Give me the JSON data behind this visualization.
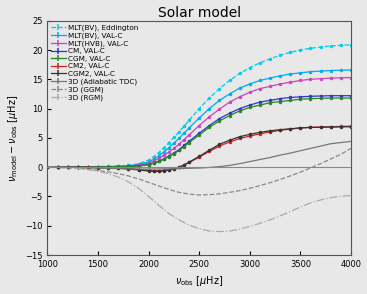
{
  "title": "Solar model",
  "xlabel": "$\\nu_{\\rm obs}$ [$\\mu$Hz]",
  "ylabel": "$\\nu_{\\rm model} - \\nu_{\\rm obs}$ [$\\mu$Hz]",
  "xlim": [
    1000,
    4000
  ],
  "ylim": [
    -15,
    25
  ],
  "yticks": [
    -15,
    -10,
    -5,
    0,
    5,
    10,
    15,
    20,
    25
  ],
  "xticks": [
    1000,
    1500,
    2000,
    2500,
    3000,
    3500,
    4000
  ],
  "bg_color": "#e8e8e8",
  "series": [
    {
      "label": "MLT(BV), Eddington",
      "color": "#00ccee",
      "linestyle": "--",
      "linewidth": 0.9,
      "marker": "o",
      "markersize": 2.0,
      "x": [
        1000,
        1100,
        1200,
        1300,
        1400,
        1500,
        1600,
        1700,
        1800,
        1900,
        2000,
        2050,
        2100,
        2150,
        2200,
        2250,
        2300,
        2350,
        2400,
        2500,
        2600,
        2700,
        2800,
        2900,
        3000,
        3100,
        3200,
        3300,
        3400,
        3500,
        3600,
        3700,
        3800,
        3900,
        4000
      ],
      "y": [
        0.0,
        0.02,
        0.04,
        0.06,
        0.08,
        0.1,
        0.12,
        0.18,
        0.3,
        0.6,
        1.2,
        1.8,
        2.5,
        3.3,
        4.2,
        5.1,
        6.0,
        7.0,
        8.0,
        10.0,
        11.8,
        13.4,
        14.8,
        16.0,
        17.0,
        17.8,
        18.5,
        19.1,
        19.6,
        20.0,
        20.3,
        20.5,
        20.7,
        20.8,
        20.9
      ]
    },
    {
      "label": "MLT(BV), VAL-C",
      "color": "#00aaee",
      "linestyle": "-",
      "linewidth": 0.9,
      "marker": "o",
      "markersize": 2.0,
      "x": [
        1000,
        1100,
        1200,
        1300,
        1400,
        1500,
        1600,
        1700,
        1800,
        1900,
        2000,
        2050,
        2100,
        2150,
        2200,
        2250,
        2300,
        2350,
        2400,
        2500,
        2600,
        2700,
        2800,
        2900,
        3000,
        3100,
        3200,
        3300,
        3400,
        3500,
        3600,
        3700,
        3800,
        3900,
        4000
      ],
      "y": [
        0.0,
        0.02,
        0.03,
        0.05,
        0.07,
        0.09,
        0.1,
        0.14,
        0.22,
        0.45,
        0.9,
        1.35,
        1.9,
        2.55,
        3.3,
        4.1,
        4.9,
        5.8,
        6.7,
        8.4,
        10.0,
        11.4,
        12.5,
        13.5,
        14.2,
        14.8,
        15.2,
        15.6,
        15.9,
        16.1,
        16.3,
        16.4,
        16.5,
        16.55,
        16.6
      ]
    },
    {
      "label": "MLT(HVB), VAL-C",
      "color": "#cc44bb",
      "linestyle": "-",
      "linewidth": 0.9,
      "marker": "o",
      "markersize": 2.0,
      "x": [
        1000,
        1100,
        1200,
        1300,
        1400,
        1500,
        1600,
        1700,
        1800,
        1900,
        2000,
        2050,
        2100,
        2150,
        2200,
        2250,
        2300,
        2350,
        2400,
        2500,
        2600,
        2700,
        2800,
        2900,
        3000,
        3100,
        3200,
        3300,
        3400,
        3500,
        3600,
        3700,
        3800,
        3900,
        4000
      ],
      "y": [
        0.0,
        0.01,
        0.02,
        0.04,
        0.06,
        0.08,
        0.09,
        0.12,
        0.18,
        0.35,
        0.7,
        1.05,
        1.5,
        2.0,
        2.6,
        3.2,
        3.9,
        4.7,
        5.5,
        7.1,
        8.6,
        9.9,
        11.1,
        12.0,
        12.8,
        13.4,
        13.8,
        14.2,
        14.5,
        14.8,
        15.0,
        15.1,
        15.2,
        15.25,
        15.3
      ]
    },
    {
      "label": "CM, VAL-C",
      "color": "#3333cc",
      "linestyle": "-",
      "linewidth": 0.9,
      "marker": "o",
      "markersize": 2.0,
      "x": [
        1000,
        1100,
        1200,
        1300,
        1400,
        1500,
        1600,
        1700,
        1800,
        1900,
        2000,
        2050,
        2100,
        2150,
        2200,
        2250,
        2300,
        2350,
        2400,
        2500,
        2600,
        2700,
        2800,
        2900,
        3000,
        3100,
        3200,
        3300,
        3400,
        3500,
        3600,
        3700,
        3800,
        3900,
        4000
      ],
      "y": [
        0.0,
        0.01,
        0.02,
        0.03,
        0.04,
        0.05,
        0.06,
        0.08,
        0.12,
        0.22,
        0.45,
        0.7,
        1.0,
        1.4,
        1.9,
        2.4,
        3.0,
        3.7,
        4.4,
        5.8,
        7.1,
        8.3,
        9.2,
        10.0,
        10.6,
        11.1,
        11.4,
        11.7,
        11.9,
        12.0,
        12.1,
        12.15,
        12.2,
        12.2,
        12.2
      ]
    },
    {
      "label": "CGM, VAL-C",
      "color": "#228822",
      "linestyle": "-",
      "linewidth": 0.9,
      "marker": "o",
      "markersize": 2.0,
      "x": [
        1000,
        1100,
        1200,
        1300,
        1400,
        1500,
        1600,
        1700,
        1800,
        1900,
        2000,
        2050,
        2100,
        2150,
        2200,
        2250,
        2300,
        2350,
        2400,
        2500,
        2600,
        2700,
        2800,
        2900,
        3000,
        3100,
        3200,
        3300,
        3400,
        3500,
        3600,
        3700,
        3800,
        3900,
        4000
      ],
      "y": [
        0.0,
        0.01,
        0.02,
        0.03,
        0.04,
        0.05,
        0.06,
        0.08,
        0.12,
        0.22,
        0.44,
        0.68,
        0.98,
        1.34,
        1.8,
        2.3,
        2.85,
        3.5,
        4.2,
        5.5,
        6.8,
        7.9,
        8.8,
        9.6,
        10.2,
        10.6,
        11.0,
        11.2,
        11.4,
        11.6,
        11.7,
        11.75,
        11.8,
        11.8,
        11.8
      ]
    },
    {
      "label": "CM2, VAL-C",
      "color": "#cc2222",
      "linestyle": "-",
      "linewidth": 0.9,
      "marker": "o",
      "markersize": 2.0,
      "x": [
        1000,
        1100,
        1200,
        1300,
        1400,
        1500,
        1600,
        1700,
        1800,
        1900,
        2000,
        2050,
        2100,
        2150,
        2200,
        2250,
        2300,
        2350,
        2400,
        2500,
        2600,
        2700,
        2800,
        2900,
        3000,
        3100,
        3200,
        3300,
        3400,
        3500,
        3600,
        3700,
        3800,
        3900,
        4000
      ],
      "y": [
        0.0,
        -0.01,
        -0.02,
        -0.03,
        -0.05,
        -0.07,
        -0.1,
        -0.15,
        -0.25,
        -0.4,
        -0.55,
        -0.6,
        -0.6,
        -0.55,
        -0.45,
        -0.25,
        0.0,
        0.35,
        0.8,
        1.7,
        2.7,
        3.6,
        4.3,
        4.9,
        5.3,
        5.7,
        6.0,
        6.3,
        6.5,
        6.7,
        6.8,
        6.85,
        6.9,
        6.95,
        7.0
      ]
    },
    {
      "label": "CGM2, VAL-C",
      "color": "#333333",
      "linestyle": "-",
      "linewidth": 0.9,
      "marker": "o",
      "markersize": 2.0,
      "x": [
        1000,
        1100,
        1200,
        1300,
        1400,
        1500,
        1600,
        1700,
        1800,
        1900,
        2000,
        2050,
        2100,
        2150,
        2200,
        2250,
        2300,
        2350,
        2400,
        2500,
        2600,
        2700,
        2800,
        2900,
        3000,
        3100,
        3200,
        3300,
        3400,
        3500,
        3600,
        3700,
        3800,
        3900,
        4000
      ],
      "y": [
        0.0,
        -0.01,
        -0.02,
        -0.04,
        -0.06,
        -0.08,
        -0.12,
        -0.18,
        -0.3,
        -0.48,
        -0.65,
        -0.72,
        -0.72,
        -0.65,
        -0.5,
        -0.28,
        0.0,
        0.38,
        0.85,
        1.85,
        2.9,
        3.9,
        4.6,
        5.2,
        5.6,
        5.95,
        6.2,
        6.4,
        6.55,
        6.7,
        6.78,
        6.82,
        6.85,
        6.88,
        6.9
      ]
    },
    {
      "label": "3D (Adiabatic TDC)",
      "color": "#777777",
      "linestyle": "-",
      "linewidth": 0.9,
      "marker": "None",
      "markersize": 0,
      "x": [
        1000,
        1100,
        1200,
        1300,
        1400,
        1500,
        1600,
        1700,
        1800,
        1900,
        2000,
        2100,
        2200,
        2300,
        2400,
        2500,
        2600,
        2700,
        2800,
        2900,
        3000,
        3100,
        3200,
        3300,
        3400,
        3500,
        3600,
        3700,
        3800,
        3900,
        4000
      ],
      "y": [
        0.05,
        0.03,
        0.0,
        -0.05,
        -0.1,
        -0.15,
        -0.2,
        -0.25,
        -0.3,
        -0.32,
        -0.32,
        -0.3,
        -0.28,
        -0.25,
        -0.2,
        -0.15,
        -0.05,
        0.1,
        0.3,
        0.6,
        0.95,
        1.3,
        1.65,
        2.05,
        2.4,
        2.8,
        3.2,
        3.6,
        4.0,
        4.2,
        4.4
      ]
    },
    {
      "label": "3D (GGM)",
      "color": "#888888",
      "linestyle": "--",
      "linewidth": 0.9,
      "marker": "None",
      "markersize": 0,
      "x": [
        1000,
        1100,
        1200,
        1300,
        1400,
        1500,
        1600,
        1700,
        1800,
        1900,
        2000,
        2100,
        2200,
        2300,
        2400,
        2500,
        2600,
        2700,
        2800,
        2900,
        3000,
        3100,
        3200,
        3300,
        3400,
        3500,
        3600,
        3700,
        3800,
        3900,
        4000
      ],
      "y": [
        0.0,
        -0.05,
        -0.1,
        -0.2,
        -0.35,
        -0.55,
        -0.8,
        -1.1,
        -1.5,
        -2.0,
        -2.6,
        -3.2,
        -3.8,
        -4.3,
        -4.6,
        -4.75,
        -4.7,
        -4.55,
        -4.3,
        -4.0,
        -3.6,
        -3.15,
        -2.65,
        -2.1,
        -1.5,
        -0.85,
        -0.15,
        0.6,
        1.4,
        2.2,
        3.2
      ]
    },
    {
      "label": "3D (RGM)",
      "color": "#aaaaaa",
      "linestyle": "-.",
      "linewidth": 0.9,
      "marker": "None",
      "markersize": 0,
      "x": [
        1000,
        1100,
        1200,
        1300,
        1400,
        1500,
        1600,
        1700,
        1800,
        1900,
        2000,
        2100,
        2200,
        2300,
        2400,
        2500,
        2600,
        2700,
        2800,
        2900,
        3000,
        3100,
        3200,
        3300,
        3400,
        3500,
        3600,
        3700,
        3800,
        3900,
        4000
      ],
      "y": [
        0.0,
        -0.05,
        -0.1,
        -0.2,
        -0.4,
        -0.7,
        -1.1,
        -1.7,
        -2.5,
        -3.6,
        -5.0,
        -6.5,
        -7.9,
        -9.0,
        -9.9,
        -10.5,
        -10.9,
        -11.0,
        -10.9,
        -10.6,
        -10.1,
        -9.6,
        -9.0,
        -8.3,
        -7.6,
        -6.8,
        -6.1,
        -5.6,
        -5.2,
        -4.95,
        -4.85
      ]
    }
  ],
  "hline_y": 0.0,
  "hline_color": "#888888",
  "legend_fontsize": 5.2,
  "title_fontsize": 10,
  "axis_fontsize": 7,
  "tick_fontsize": 6
}
